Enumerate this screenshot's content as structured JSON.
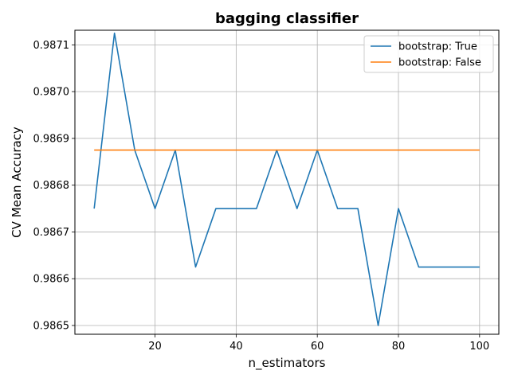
{
  "chart_data": {
    "type": "line",
    "title": "bagging classifier",
    "xlabel": "n_estimators",
    "ylabel": "CV Mean Accuracy",
    "xlim": [
      0.25,
      104.75
    ],
    "ylim": [
      0.98648125,
      0.98713125
    ],
    "xticks": [
      20,
      40,
      60,
      80,
      100
    ],
    "xtick_labels": [
      "20",
      "40",
      "60",
      "80",
      "100"
    ],
    "yticks": [
      0.9865,
      0.9866,
      0.9867,
      0.9868,
      0.9869,
      0.987,
      0.9871
    ],
    "ytick_labels": [
      "0.9865",
      "0.9866",
      "0.9867",
      "0.9868",
      "0.9869",
      "0.9870",
      "0.9871"
    ],
    "grid": true,
    "legend_position": "top-right",
    "series": [
      {
        "name": "bootstrap: True",
        "color": "#1f77b4",
        "x": [
          5,
          10,
          15,
          20,
          25,
          30,
          35,
          40,
          45,
          50,
          55,
          60,
          65,
          70,
          75,
          80,
          85,
          90,
          95,
          100
        ],
        "y": [
          0.98675,
          0.987125,
          0.986875,
          0.98675,
          0.986875,
          0.986625,
          0.98675,
          0.98675,
          0.98675,
          0.986875,
          0.98675,
          0.986875,
          0.98675,
          0.98675,
          0.9865,
          0.98675,
          0.986625,
          0.986625,
          0.986625,
          0.986625
        ]
      },
      {
        "name": "bootstrap: False",
        "color": "#ff7f0e",
        "x": [
          5,
          10,
          15,
          20,
          25,
          30,
          35,
          40,
          45,
          50,
          55,
          60,
          65,
          70,
          75,
          80,
          85,
          90,
          95,
          100
        ],
        "y": [
          0.986875,
          0.986875,
          0.986875,
          0.986875,
          0.986875,
          0.986875,
          0.986875,
          0.986875,
          0.986875,
          0.986875,
          0.986875,
          0.986875,
          0.986875,
          0.986875,
          0.986875,
          0.986875,
          0.986875,
          0.986875,
          0.986875,
          0.986875
        ]
      }
    ]
  }
}
